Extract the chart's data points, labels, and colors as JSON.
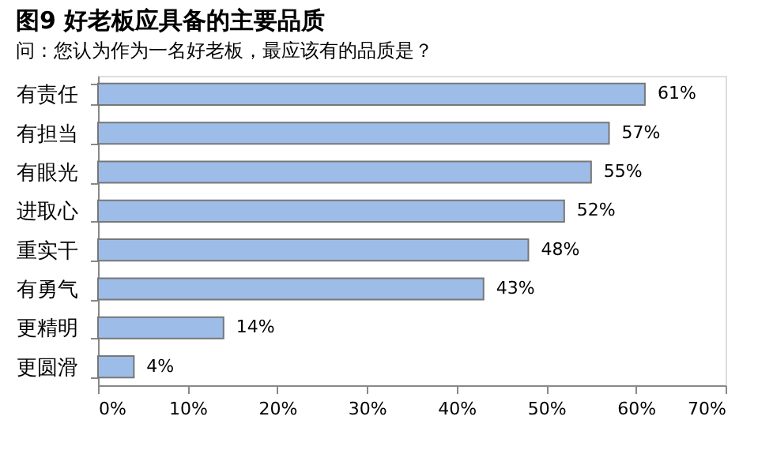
{
  "chart_data": {
    "type": "bar",
    "orientation": "horizontal",
    "title": "图9  好老板应具备的主要品质",
    "subtitle": "问：您认为作为一名好老板，最应该有的品质是？",
    "categories": [
      "有责任",
      "有担当",
      "有眼光",
      "进取心",
      "重实干",
      "有勇气",
      "更精明",
      "更圆滑"
    ],
    "values": [
      61,
      57,
      55,
      52,
      48,
      43,
      14,
      4
    ],
    "value_labels": [
      "61%",
      "57%",
      "55%",
      "52%",
      "48%",
      "43%",
      "14%",
      "4%"
    ],
    "color": "#9dbde8",
    "xlim": [
      0,
      70
    ],
    "xticks": [
      {
        "value": 0,
        "label": "0%"
      },
      {
        "value": 10,
        "label": "10%"
      },
      {
        "value": 20,
        "label": "20%"
      },
      {
        "value": 30,
        "label": "30%"
      },
      {
        "value": 40,
        "label": "40%"
      },
      {
        "value": 50,
        "label": "50%"
      },
      {
        "value": 60,
        "label": "60%"
      },
      {
        "value": 70,
        "label": "70%"
      }
    ],
    "grid": false
  }
}
